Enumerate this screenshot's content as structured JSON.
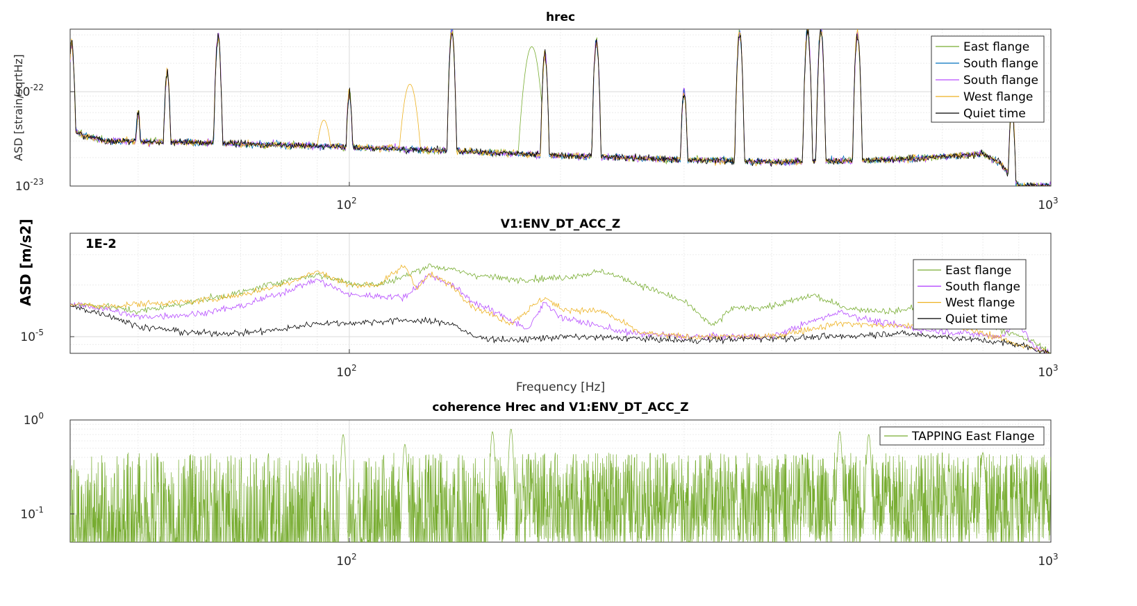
{
  "chart_data": [
    {
      "type": "line",
      "title": "hrec",
      "xlabel": "",
      "ylabel": "ASD [strain/sqrtHz]",
      "xscale": "log",
      "yscale": "log",
      "xlim": [
        40,
        1000
      ],
      "ylim": [
        1e-23,
        4.6e-22
      ],
      "xticks": [
        {
          "value": 100,
          "base": "10",
          "exp": "2"
        },
        {
          "value": 1000,
          "base": "10",
          "exp": "3"
        }
      ],
      "yticks": [
        {
          "value": 1e-23,
          "base": "10",
          "exp": "-23"
        },
        {
          "value": 1e-22,
          "base": "10",
          "exp": "-22"
        }
      ],
      "grid": true,
      "legend": "top-right",
      "series": [
        {
          "name": "East flange",
          "color": "#77ac30"
        },
        {
          "name": "South flange",
          "color": "#0072bd"
        },
        {
          "name": "South flange",
          "color": "#b64cff"
        },
        {
          "name": "West flange",
          "color": "#edb120"
        },
        {
          "name": "Quiet time",
          "color": "#000000"
        }
      ],
      "baseline": [
        [
          40,
          3.8e-23
        ],
        [
          45,
          3e-23
        ],
        [
          60,
          2.9e-23
        ],
        [
          100,
          2.6e-23
        ],
        [
          150,
          2.3e-23
        ],
        [
          200,
          2.1e-23
        ],
        [
          300,
          1.9e-23
        ],
        [
          400,
          1.8e-23
        ],
        [
          600,
          1.9e-23
        ],
        [
          800,
          2.2e-23
        ],
        [
          850,
          1.7e-23
        ],
        [
          900,
          1e-23
        ],
        [
          1000,
          1e-23
        ]
      ],
      "peaks": [
        [
          40.2,
          3.2e-22
        ],
        [
          50,
          6e-23
        ],
        [
          55,
          1.6e-22
        ],
        [
          65,
          3.8e-22
        ],
        [
          100,
          1e-22
        ],
        [
          140,
          4.6e-22
        ],
        [
          190,
          2.5e-22
        ],
        [
          225,
          3.4e-22
        ],
        [
          300,
          1e-22
        ],
        [
          360,
          4.2e-22
        ],
        [
          450,
          4.6e-22
        ],
        [
          470,
          4.6e-22
        ],
        [
          530,
          4.1e-22
        ],
        [
          880,
          7e-23
        ]
      ],
      "extra_peaks": [
        {
          "series": "West flange",
          "x": 122,
          "y": 1.2e-22
        },
        {
          "series": "West flange",
          "x": 92,
          "y": 5e-23
        },
        {
          "series": "East flange",
          "x": 182,
          "y": 3e-22
        }
      ]
    },
    {
      "type": "line",
      "title": "V1:ENV_DT_ACC_Z",
      "xlabel": "Frequency [Hz]",
      "ylabel": "ASD [m/s2]",
      "annotation": "1E-2",
      "xscale": "log",
      "yscale": "log",
      "xlim": [
        40,
        1000
      ],
      "ylim": [
        8e-06,
        4e-05
      ],
      "xticks": [
        {
          "value": 100,
          "base": "10",
          "exp": "2"
        },
        {
          "value": 1000,
          "base": "10",
          "exp": "3"
        }
      ],
      "yticks": [
        {
          "value": 1e-05,
          "base": "10",
          "exp": "-5"
        }
      ],
      "grid": true,
      "legend": "right",
      "series": [
        {
          "name": "East flange",
          "color": "#77ac30",
          "points": [
            [
              40,
              1.55e-05
            ],
            [
              45,
              1.5e-05
            ],
            [
              50,
              1.4e-05
            ],
            [
              60,
              1.6e-05
            ],
            [
              70,
              1.8e-05
            ],
            [
              80,
              2.1e-05
            ],
            [
              90,
              2.3e-05
            ],
            [
              100,
              2.05e-05
            ],
            [
              110,
              2e-05
            ],
            [
              120,
              2.25e-05
            ],
            [
              130,
              2.6e-05
            ],
            [
              140,
              2.45e-05
            ],
            [
              150,
              2.3e-05
            ],
            [
              170,
              2.15e-05
            ],
            [
              200,
              2.2e-05
            ],
            [
              230,
              2.4e-05
            ],
            [
              260,
              2e-05
            ],
            [
              300,
              1.6e-05
            ],
            [
              330,
              1.15e-05
            ],
            [
              350,
              1.45e-05
            ],
            [
              400,
              1.5e-05
            ],
            [
              460,
              1.75e-05
            ],
            [
              480,
              1.6e-05
            ],
            [
              520,
              1.45e-05
            ],
            [
              600,
              1.4e-05
            ],
            [
              700,
              1.6e-05
            ],
            [
              760,
              1.3e-05
            ],
            [
              850,
              1.1e-05
            ],
            [
              950,
              9.2e-06
            ],
            [
              1000,
              8e-06
            ]
          ]
        },
        {
          "name": "South flange",
          "color": "#b64cff",
          "points": [
            [
              40,
              1.55e-05
            ],
            [
              45,
              1.45e-05
            ],
            [
              50,
              1.3e-05
            ],
            [
              60,
              1.35e-05
            ],
            [
              70,
              1.5e-05
            ],
            [
              80,
              1.8e-05
            ],
            [
              90,
              2.15e-05
            ],
            [
              100,
              1.75e-05
            ],
            [
              120,
              1.7e-05
            ],
            [
              130,
              2.3e-05
            ],
            [
              140,
              2e-05
            ],
            [
              150,
              1.6e-05
            ],
            [
              170,
              1.25e-05
            ],
            [
              180,
              1.1e-05
            ],
            [
              190,
              1.6e-05
            ],
            [
              200,
              1.3e-05
            ],
            [
              250,
              1.05e-05
            ],
            [
              300,
              1e-05
            ],
            [
              350,
              1e-05
            ],
            [
              400,
              1e-05
            ],
            [
              450,
              1.2e-05
            ],
            [
              500,
              1.4e-05
            ],
            [
              550,
              1.25e-05
            ],
            [
              650,
              1.1e-05
            ],
            [
              750,
              1.05e-05
            ],
            [
              850,
              1e-05
            ],
            [
              900,
              1.2e-05
            ],
            [
              950,
              8.5e-06
            ],
            [
              1000,
              8e-06
            ]
          ]
        },
        {
          "name": "West flange",
          "color": "#edb120",
          "points": [
            [
              40,
              1.55e-05
            ],
            [
              45,
              1.5e-05
            ],
            [
              50,
              1.55e-05
            ],
            [
              60,
              1.6e-05
            ],
            [
              70,
              1.75e-05
            ],
            [
              80,
              2e-05
            ],
            [
              90,
              2.4e-05
            ],
            [
              100,
              2e-05
            ],
            [
              110,
              2e-05
            ],
            [
              120,
              2.6e-05
            ],
            [
              125,
              1.9e-05
            ],
            [
              130,
              2.3e-05
            ],
            [
              140,
              2e-05
            ],
            [
              150,
              1.5e-05
            ],
            [
              170,
              1.2e-05
            ],
            [
              190,
              1.7e-05
            ],
            [
              200,
              1.45e-05
            ],
            [
              230,
              1.4e-05
            ],
            [
              260,
              1.05e-05
            ],
            [
              300,
              1e-05
            ],
            [
              400,
              1e-05
            ],
            [
              500,
              1.2e-05
            ],
            [
              600,
              1.15e-05
            ],
            [
              700,
              1.2e-05
            ],
            [
              800,
              1.05e-05
            ],
            [
              900,
              9e-06
            ],
            [
              1000,
              8e-06
            ]
          ]
        },
        {
          "name": "Quiet time",
          "color": "#000000",
          "points": [
            [
              40,
              1.5e-05
            ],
            [
              45,
              1.35e-05
            ],
            [
              50,
              1.15e-05
            ],
            [
              60,
              1.05e-05
            ],
            [
              70,
              1.05e-05
            ],
            [
              80,
              1.1e-05
            ],
            [
              90,
              1.2e-05
            ],
            [
              100,
              1.2e-05
            ],
            [
              120,
              1.25e-05
            ],
            [
              140,
              1.2e-05
            ],
            [
              150,
              1e-05
            ],
            [
              170,
              9.5e-06
            ],
            [
              200,
              1e-05
            ],
            [
              250,
              9.8e-06
            ],
            [
              300,
              9.5e-06
            ],
            [
              400,
              9.8e-06
            ],
            [
              500,
              1e-05
            ],
            [
              600,
              1.05e-05
            ],
            [
              700,
              1e-05
            ],
            [
              800,
              9.5e-06
            ],
            [
              900,
              9e-06
            ],
            [
              1000,
              8e-06
            ]
          ]
        }
      ]
    },
    {
      "type": "line",
      "title": "coherence Hrec and V1:ENV_DT_ACC_Z",
      "xlabel": "",
      "ylabel": "",
      "xscale": "log",
      "yscale": "log",
      "xlim": [
        40,
        1000
      ],
      "ylim": [
        0.05,
        1
      ],
      "xticks": [
        {
          "value": 100,
          "base": "10",
          "exp": "2"
        },
        {
          "value": 1000,
          "base": "10",
          "exp": "3"
        }
      ],
      "yticks": [
        {
          "value": 0.1,
          "base": "10",
          "exp": "-1"
        },
        {
          "value": 1,
          "base": "10",
          "exp": "0"
        }
      ],
      "grid": true,
      "legend": "top-right",
      "series": [
        {
          "name": "TAPPING East Flange",
          "color": "#77ac30",
          "typical_range": [
            0.05,
            0.45
          ],
          "peaks": [
            [
              98,
              0.7
            ],
            [
              120,
              0.55
            ],
            [
              160,
              0.75
            ],
            [
              170,
              0.8
            ],
            [
              500,
              0.75
            ],
            [
              550,
              0.7
            ],
            [
              800,
              0.45
            ]
          ]
        }
      ]
    }
  ]
}
